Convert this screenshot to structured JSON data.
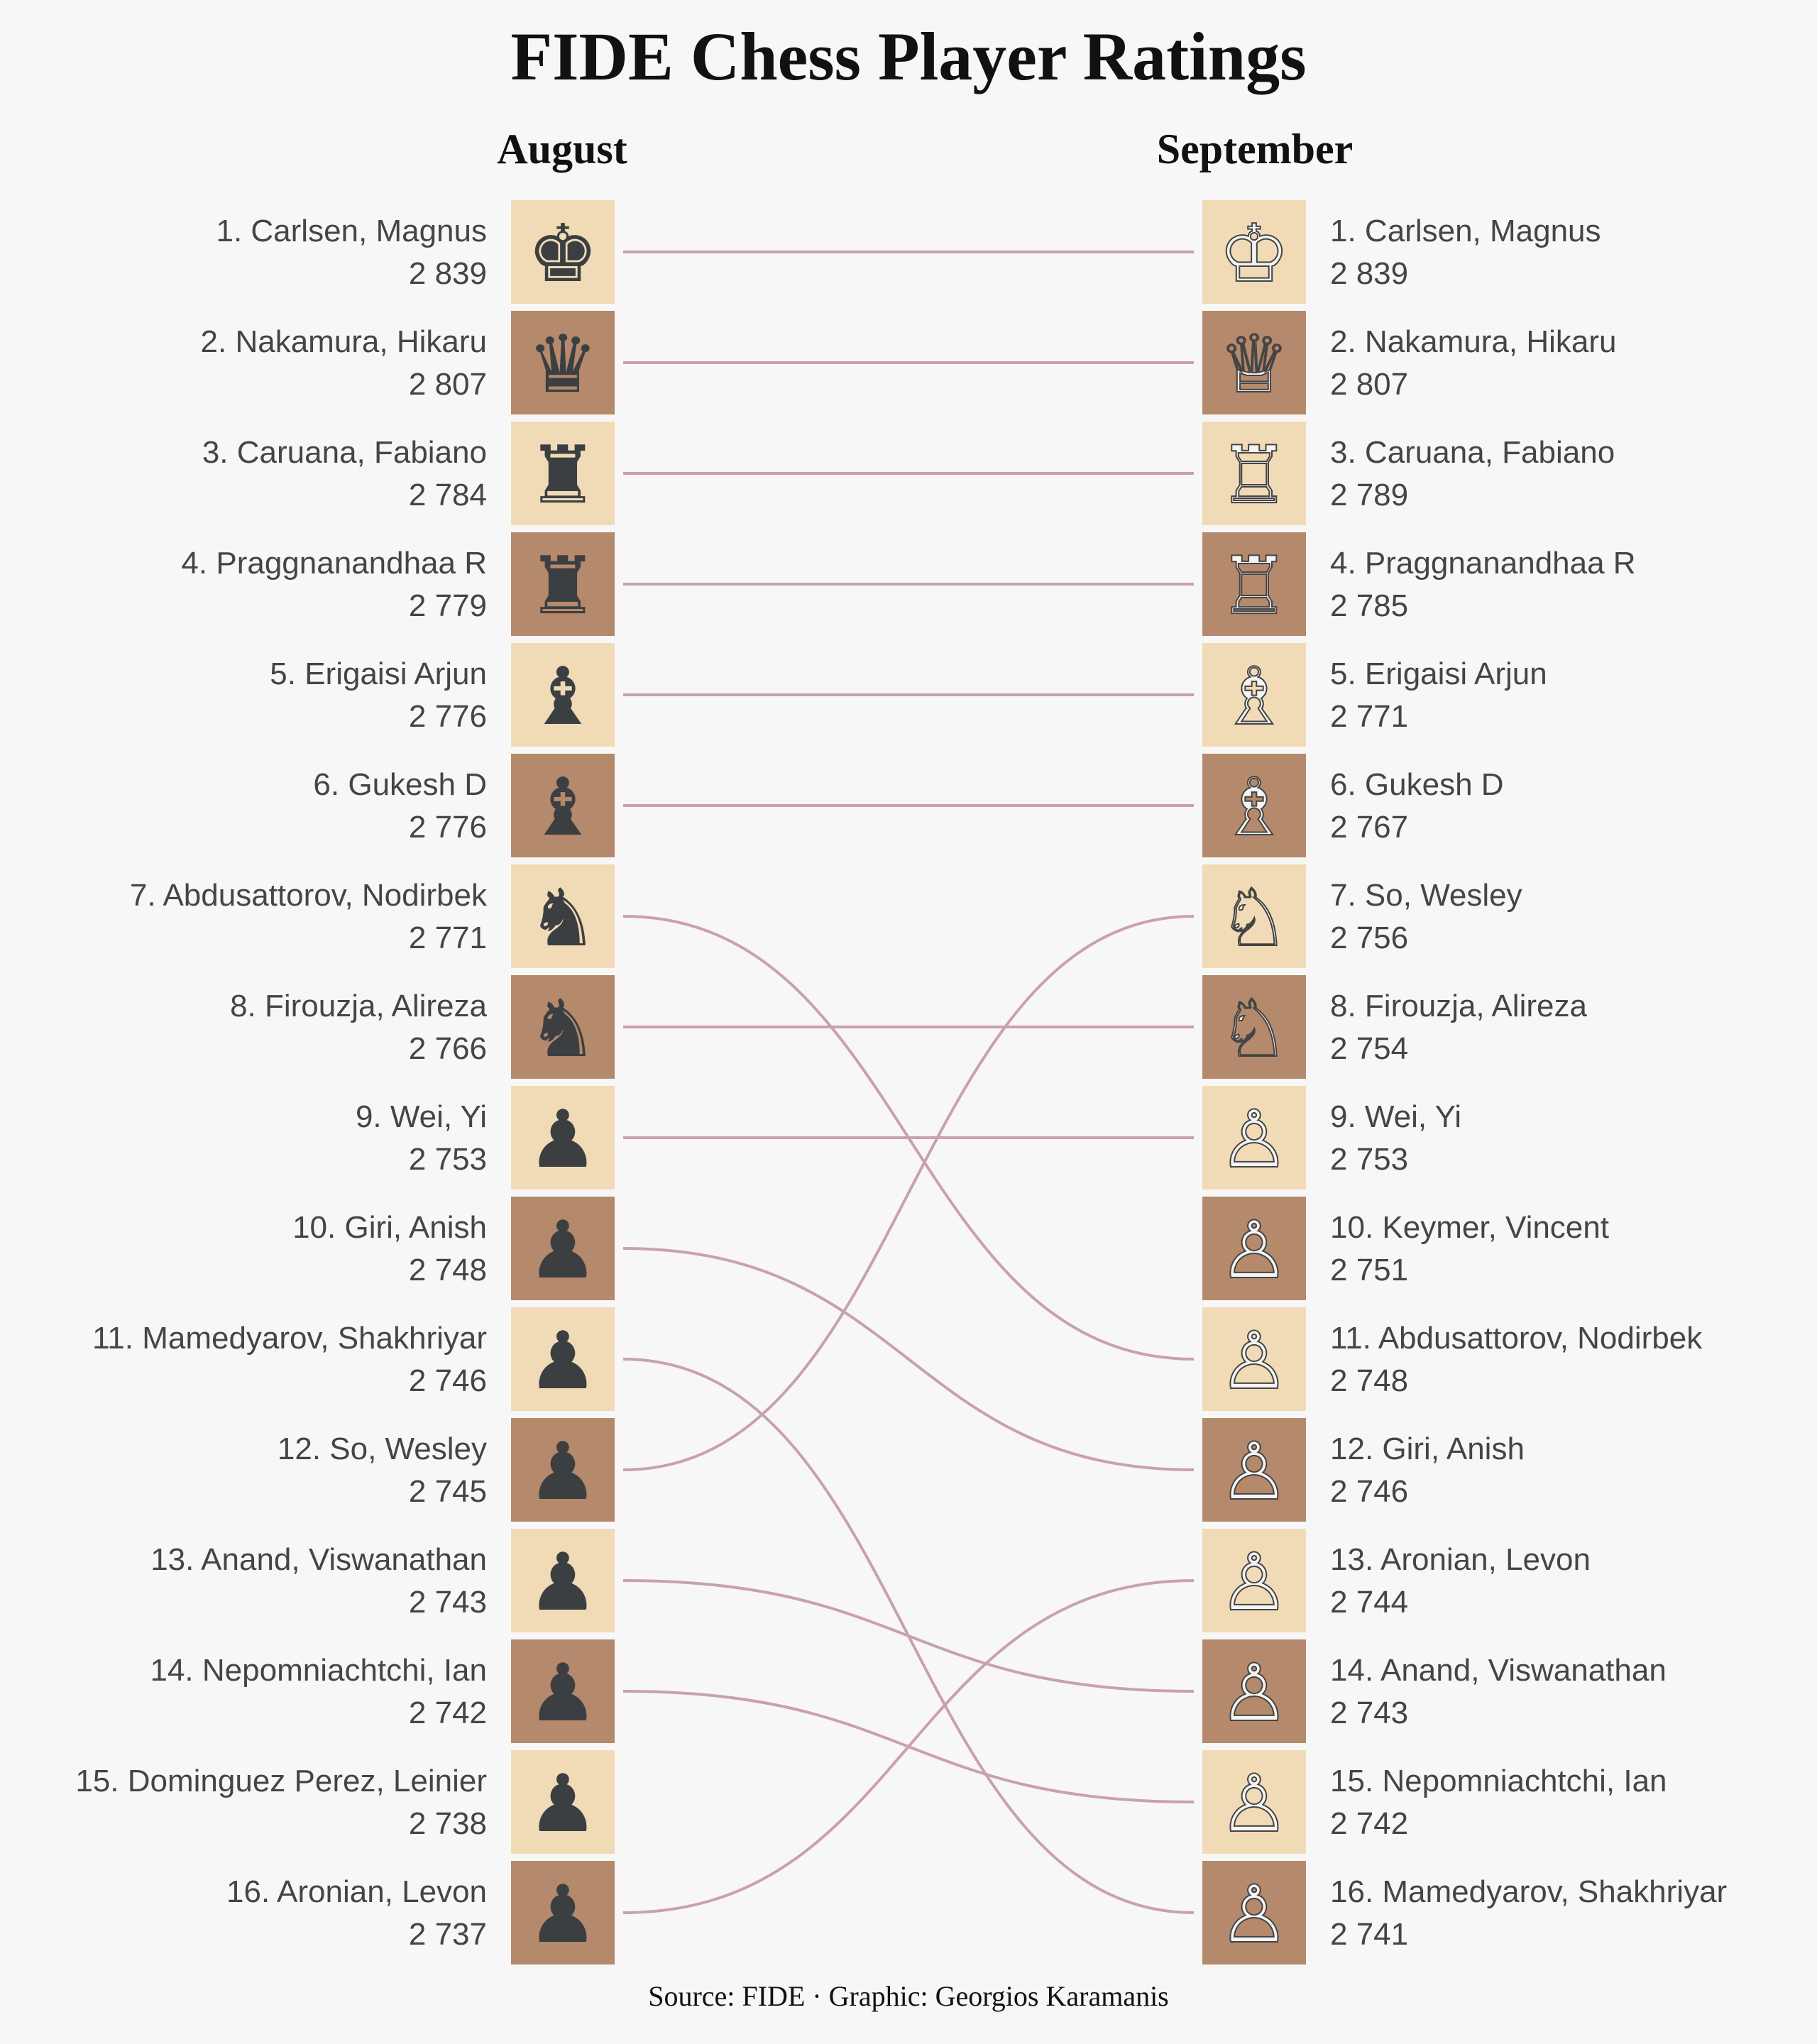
{
  "chart_data": {
    "type": "slope",
    "title": "FIDE Chess Player Ratings",
    "columns": [
      "August",
      "September"
    ],
    "caption": "Source: FIDE · Graphic: Georgios Karamanis",
    "colors": {
      "light_square": "#f1dbb6",
      "dark_square": "#b5896b",
      "black_piece": "#3c3f41",
      "white_piece": "#f4f4f4",
      "link": "#c9a1ad"
    },
    "pieces_by_rank": [
      "king",
      "queen",
      "rook",
      "rook",
      "bishop",
      "bishop",
      "knight",
      "knight",
      "pawn",
      "pawn",
      "pawn",
      "pawn",
      "pawn",
      "pawn",
      "pawn",
      "pawn"
    ],
    "august": [
      {
        "rank": "1.",
        "name": "Carlsen, Magnus",
        "rating": "2 839"
      },
      {
        "rank": "2.",
        "name": "Nakamura, Hikaru",
        "rating": "2 807"
      },
      {
        "rank": "3.",
        "name": "Caruana, Fabiano",
        "rating": "2 784"
      },
      {
        "rank": "4.",
        "name": "Praggnanandhaa R",
        "rating": "2 779"
      },
      {
        "rank": "5.",
        "name": "Erigaisi Arjun",
        "rating": "2 776"
      },
      {
        "rank": "6.",
        "name": "Gukesh D",
        "rating": "2 776"
      },
      {
        "rank": "7.",
        "name": "Abdusattorov, Nodirbek",
        "rating": "2 771"
      },
      {
        "rank": "8.",
        "name": "Firouzja, Alireza",
        "rating": "2 766"
      },
      {
        "rank": "9.",
        "name": "Wei, Yi",
        "rating": "2 753"
      },
      {
        "rank": "10.",
        "name": "Giri, Anish",
        "rating": "2 748"
      },
      {
        "rank": "11.",
        "name": "Mamedyarov, Shakhriyar",
        "rating": "2 746"
      },
      {
        "rank": "12.",
        "name": "So, Wesley",
        "rating": "2 745"
      },
      {
        "rank": "13.",
        "name": "Anand, Viswanathan",
        "rating": "2 743"
      },
      {
        "rank": "14.",
        "name": "Nepomniachtchi, Ian",
        "rating": "2 742"
      },
      {
        "rank": "15.",
        "name": "Dominguez Perez, Leinier",
        "rating": "2 738"
      },
      {
        "rank": "16.",
        "name": "Aronian, Levon",
        "rating": "2 737"
      }
    ],
    "september": [
      {
        "rank": "1.",
        "name": "Carlsen, Magnus",
        "rating": "2 839"
      },
      {
        "rank": "2.",
        "name": "Nakamura, Hikaru",
        "rating": "2 807"
      },
      {
        "rank": "3.",
        "name": "Caruana, Fabiano",
        "rating": "2 789"
      },
      {
        "rank": "4.",
        "name": "Praggnanandhaa R",
        "rating": "2 785"
      },
      {
        "rank": "5.",
        "name": "Erigaisi Arjun",
        "rating": "2 771"
      },
      {
        "rank": "6.",
        "name": "Gukesh D",
        "rating": "2 767"
      },
      {
        "rank": "7.",
        "name": "So, Wesley",
        "rating": "2 756"
      },
      {
        "rank": "8.",
        "name": "Firouzja, Alireza",
        "rating": "2 754"
      },
      {
        "rank": "9.",
        "name": "Wei, Yi",
        "rating": "2 753"
      },
      {
        "rank": "10.",
        "name": "Keymer, Vincent",
        "rating": "2 751"
      },
      {
        "rank": "11.",
        "name": "Abdusattorov, Nodirbek",
        "rating": "2 748"
      },
      {
        "rank": "12.",
        "name": "Giri, Anish",
        "rating": "2 746"
      },
      {
        "rank": "13.",
        "name": "Aronian, Levon",
        "rating": "2 744"
      },
      {
        "rank": "14.",
        "name": "Anand, Viswanathan",
        "rating": "2 743"
      },
      {
        "rank": "15.",
        "name": "Nepomniachtchi, Ian",
        "rating": "2 742"
      },
      {
        "rank": "16.",
        "name": "Mamedyarov, Shakhriyar",
        "rating": "2 741"
      }
    ],
    "links": [
      {
        "from": 1,
        "to": 1
      },
      {
        "from": 2,
        "to": 2
      },
      {
        "from": 3,
        "to": 3
      },
      {
        "from": 4,
        "to": 4
      },
      {
        "from": 5,
        "to": 5
      },
      {
        "from": 6,
        "to": 6
      },
      {
        "from": 7,
        "to": 11
      },
      {
        "from": 8,
        "to": 8
      },
      {
        "from": 9,
        "to": 9
      },
      {
        "from": 10,
        "to": 12
      },
      {
        "from": 11,
        "to": 16
      },
      {
        "from": 12,
        "to": 7
      },
      {
        "from": 13,
        "to": 14
      },
      {
        "from": 14,
        "to": 15
      },
      {
        "from": 16,
        "to": 13
      }
    ]
  }
}
